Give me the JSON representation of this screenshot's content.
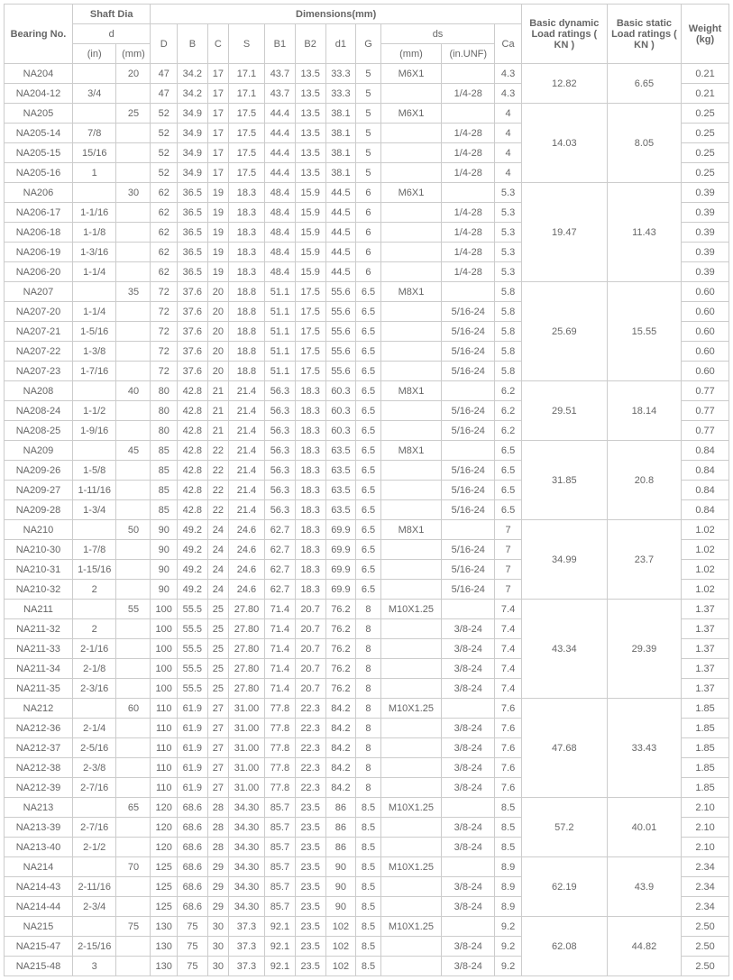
{
  "headers": {
    "bearing_no": "Bearing No.",
    "shaft_dia": "Shaft Dia",
    "dimensions": "Dimensions(mm)",
    "basic_dynamic": "Basic dynamic Load ratings ( KN )",
    "basic_static": "Basic static Load ratings ( KN )",
    "weight": "Weight (kg)",
    "d": "d",
    "in": "(in)",
    "mm": "(mm)",
    "D": "D",
    "B": "B",
    "C": "C",
    "S": "S",
    "B1": "B1",
    "B2": "B2",
    "d1": "d1",
    "G": "G",
    "ds": "ds",
    "ds_mm": "(mm)",
    "ds_unf": "(in.UNF)",
    "Ca": "Ca"
  },
  "groups": [
    {
      "dyn": "12.82",
      "stat": "6.65",
      "rows": [
        {
          "bn": "NA204",
          "in": "",
          "mm": "20",
          "D": "47",
          "B": "34.2",
          "C": "17",
          "S": "17.1",
          "B1": "43.7",
          "B2": "13.5",
          "d1": "33.3",
          "G": "5",
          "dsmm": "M6X1",
          "dsunf": "",
          "Ca": "4.3",
          "wt": "0.21"
        },
        {
          "bn": "NA204-12",
          "in": "3/4",
          "mm": "",
          "D": "47",
          "B": "34.2",
          "C": "17",
          "S": "17.1",
          "B1": "43.7",
          "B2": "13.5",
          "d1": "33.3",
          "G": "5",
          "dsmm": "",
          "dsunf": "1/4-28",
          "Ca": "4.3",
          "wt": "0.21"
        }
      ]
    },
    {
      "dyn": "14.03",
      "stat": "8.05",
      "rows": [
        {
          "bn": "NA205",
          "in": "",
          "mm": "25",
          "D": "52",
          "B": "34.9",
          "C": "17",
          "S": "17.5",
          "B1": "44.4",
          "B2": "13.5",
          "d1": "38.1",
          "G": "5",
          "dsmm": "M6X1",
          "dsunf": "",
          "Ca": "4",
          "wt": "0.25"
        },
        {
          "bn": "NA205-14",
          "in": "7/8",
          "mm": "",
          "D": "52",
          "B": "34.9",
          "C": "17",
          "S": "17.5",
          "B1": "44.4",
          "B2": "13.5",
          "d1": "38.1",
          "G": "5",
          "dsmm": "",
          "dsunf": "1/4-28",
          "Ca": "4",
          "wt": "0.25"
        },
        {
          "bn": "NA205-15",
          "in": "15/16",
          "mm": "",
          "D": "52",
          "B": "34.9",
          "C": "17",
          "S": "17.5",
          "B1": "44.4",
          "B2": "13.5",
          "d1": "38.1",
          "G": "5",
          "dsmm": "",
          "dsunf": "1/4-28",
          "Ca": "4",
          "wt": "0.25"
        },
        {
          "bn": "NA205-16",
          "in": "1",
          "mm": "",
          "D": "52",
          "B": "34.9",
          "C": "17",
          "S": "17.5",
          "B1": "44.4",
          "B2": "13.5",
          "d1": "38.1",
          "G": "5",
          "dsmm": "",
          "dsunf": "1/4-28",
          "Ca": "4",
          "wt": "0.25"
        }
      ]
    },
    {
      "dyn": "19.47",
      "stat": "11.43",
      "rows": [
        {
          "bn": "NA206",
          "in": "",
          "mm": "30",
          "D": "62",
          "B": "36.5",
          "C": "19",
          "S": "18.3",
          "B1": "48.4",
          "B2": "15.9",
          "d1": "44.5",
          "G": "6",
          "dsmm": "M6X1",
          "dsunf": "",
          "Ca": "5.3",
          "wt": "0.39"
        },
        {
          "bn": "NA206-17",
          "in": "1-1/16",
          "mm": "",
          "D": "62",
          "B": "36.5",
          "C": "19",
          "S": "18.3",
          "B1": "48.4",
          "B2": "15.9",
          "d1": "44.5",
          "G": "6",
          "dsmm": "",
          "dsunf": "1/4-28",
          "Ca": "5.3",
          "wt": "0.39"
        },
        {
          "bn": "NA206-18",
          "in": "1-1/8",
          "mm": "",
          "D": "62",
          "B": "36.5",
          "C": "19",
          "S": "18.3",
          "B1": "48.4",
          "B2": "15.9",
          "d1": "44.5",
          "G": "6",
          "dsmm": "",
          "dsunf": "1/4-28",
          "Ca": "5.3",
          "wt": "0.39"
        },
        {
          "bn": "NA206-19",
          "in": "1-3/16",
          "mm": "",
          "D": "62",
          "B": "36.5",
          "C": "19",
          "S": "18.3",
          "B1": "48.4",
          "B2": "15.9",
          "d1": "44.5",
          "G": "6",
          "dsmm": "",
          "dsunf": "1/4-28",
          "Ca": "5.3",
          "wt": "0.39"
        },
        {
          "bn": "NA206-20",
          "in": "1-1/4",
          "mm": "",
          "D": "62",
          "B": "36.5",
          "C": "19",
          "S": "18.3",
          "B1": "48.4",
          "B2": "15.9",
          "d1": "44.5",
          "G": "6",
          "dsmm": "",
          "dsunf": "1/4-28",
          "Ca": "5.3",
          "wt": "0.39"
        }
      ]
    },
    {
      "dyn": "25.69",
      "stat": "15.55",
      "rows": [
        {
          "bn": "NA207",
          "in": "",
          "mm": "35",
          "D": "72",
          "B": "37.6",
          "C": "20",
          "S": "18.8",
          "B1": "51.1",
          "B2": "17.5",
          "d1": "55.6",
          "G": "6.5",
          "dsmm": "M8X1",
          "dsunf": "",
          "Ca": "5.8",
          "wt": "0.60"
        },
        {
          "bn": "NA207-20",
          "in": "1-1/4",
          "mm": "",
          "D": "72",
          "B": "37.6",
          "C": "20",
          "S": "18.8",
          "B1": "51.1",
          "B2": "17.5",
          "d1": "55.6",
          "G": "6.5",
          "dsmm": "",
          "dsunf": "5/16-24",
          "Ca": "5.8",
          "wt": "0.60"
        },
        {
          "bn": "NA207-21",
          "in": "1-5/16",
          "mm": "",
          "D": "72",
          "B": "37.6",
          "C": "20",
          "S": "18.8",
          "B1": "51.1",
          "B2": "17.5",
          "d1": "55.6",
          "G": "6.5",
          "dsmm": "",
          "dsunf": "5/16-24",
          "Ca": "5.8",
          "wt": "0.60"
        },
        {
          "bn": "NA207-22",
          "in": "1-3/8",
          "mm": "",
          "D": "72",
          "B": "37.6",
          "C": "20",
          "S": "18.8",
          "B1": "51.1",
          "B2": "17.5",
          "d1": "55.6",
          "G": "6.5",
          "dsmm": "",
          "dsunf": "5/16-24",
          "Ca": "5.8",
          "wt": "0.60"
        },
        {
          "bn": "NA207-23",
          "in": "1-7/16",
          "mm": "",
          "D": "72",
          "B": "37.6",
          "C": "20",
          "S": "18.8",
          "B1": "51.1",
          "B2": "17.5",
          "d1": "55.6",
          "G": "6.5",
          "dsmm": "",
          "dsunf": "5/16-24",
          "Ca": "5.8",
          "wt": "0.60"
        }
      ]
    },
    {
      "dyn": "29.51",
      "stat": "18.14",
      "rows": [
        {
          "bn": "NA208",
          "in": "",
          "mm": "40",
          "D": "80",
          "B": "42.8",
          "C": "21",
          "S": "21.4",
          "B1": "56.3",
          "B2": "18.3",
          "d1": "60.3",
          "G": "6.5",
          "dsmm": "M8X1",
          "dsunf": "",
          "Ca": "6.2",
          "wt": "0.77"
        },
        {
          "bn": "NA208-24",
          "in": "1-1/2",
          "mm": "",
          "D": "80",
          "B": "42.8",
          "C": "21",
          "S": "21.4",
          "B1": "56.3",
          "B2": "18.3",
          "d1": "60.3",
          "G": "6.5",
          "dsmm": "",
          "dsunf": "5/16-24",
          "Ca": "6.2",
          "wt": "0.77"
        },
        {
          "bn": "NA208-25",
          "in": "1-9/16",
          "mm": "",
          "D": "80",
          "B": "42.8",
          "C": "21",
          "S": "21.4",
          "B1": "56.3",
          "B2": "18.3",
          "d1": "60.3",
          "G": "6.5",
          "dsmm": "",
          "dsunf": "5/16-24",
          "Ca": "6.2",
          "wt": "0.77"
        }
      ]
    },
    {
      "dyn": "31.85",
      "stat": "20.8",
      "rows": [
        {
          "bn": "NA209",
          "in": "",
          "mm": "45",
          "D": "85",
          "B": "42.8",
          "C": "22",
          "S": "21.4",
          "B1": "56.3",
          "B2": "18.3",
          "d1": "63.5",
          "G": "6.5",
          "dsmm": "M8X1",
          "dsunf": "",
          "Ca": "6.5",
          "wt": "0.84"
        },
        {
          "bn": "NA209-26",
          "in": "1-5/8",
          "mm": "",
          "D": "85",
          "B": "42.8",
          "C": "22",
          "S": "21.4",
          "B1": "56.3",
          "B2": "18.3",
          "d1": "63.5",
          "G": "6.5",
          "dsmm": "",
          "dsunf": "5/16-24",
          "Ca": "6.5",
          "wt": "0.84"
        },
        {
          "bn": "NA209-27",
          "in": "1-11/16",
          "mm": "",
          "D": "85",
          "B": "42.8",
          "C": "22",
          "S": "21.4",
          "B1": "56.3",
          "B2": "18.3",
          "d1": "63.5",
          "G": "6.5",
          "dsmm": "",
          "dsunf": "5/16-24",
          "Ca": "6.5",
          "wt": "0.84"
        },
        {
          "bn": "NA209-28",
          "in": "1-3/4",
          "mm": "",
          "D": "85",
          "B": "42.8",
          "C": "22",
          "S": "21.4",
          "B1": "56.3",
          "B2": "18.3",
          "d1": "63.5",
          "G": "6.5",
          "dsmm": "",
          "dsunf": "5/16-24",
          "Ca": "6.5",
          "wt": "0.84"
        }
      ]
    },
    {
      "dyn": "34.99",
      "stat": "23.7",
      "rows": [
        {
          "bn": "NA210",
          "in": "",
          "mm": "50",
          "D": "90",
          "B": "49.2",
          "C": "24",
          "S": "24.6",
          "B1": "62.7",
          "B2": "18.3",
          "d1": "69.9",
          "G": "6.5",
          "dsmm": "M8X1",
          "dsunf": "",
          "Ca": "7",
          "wt": "1.02"
        },
        {
          "bn": "NA210-30",
          "in": "1-7/8",
          "mm": "",
          "D": "90",
          "B": "49.2",
          "C": "24",
          "S": "24.6",
          "B1": "62.7",
          "B2": "18.3",
          "d1": "69.9",
          "G": "6.5",
          "dsmm": "",
          "dsunf": "5/16-24",
          "Ca": "7",
          "wt": "1.02"
        },
        {
          "bn": "NA210-31",
          "in": "1-15/16",
          "mm": "",
          "D": "90",
          "B": "49.2",
          "C": "24",
          "S": "24.6",
          "B1": "62.7",
          "B2": "18.3",
          "d1": "69.9",
          "G": "6.5",
          "dsmm": "",
          "dsunf": "5/16-24",
          "Ca": "7",
          "wt": "1.02"
        },
        {
          "bn": "NA210-32",
          "in": "2",
          "mm": "",
          "D": "90",
          "B": "49.2",
          "C": "24",
          "S": "24.6",
          "B1": "62.7",
          "B2": "18.3",
          "d1": "69.9",
          "G": "6.5",
          "dsmm": "",
          "dsunf": "5/16-24",
          "Ca": "7",
          "wt": "1.02"
        }
      ]
    },
    {
      "dyn": "43.34",
      "stat": "29.39",
      "rows": [
        {
          "bn": "NA211",
          "in": "",
          "mm": "55",
          "D": "100",
          "B": "55.5",
          "C": "25",
          "S": "27.80",
          "B1": "71.4",
          "B2": "20.7",
          "d1": "76.2",
          "G": "8",
          "dsmm": "M10X1.25",
          "dsunf": "",
          "Ca": "7.4",
          "wt": "1.37"
        },
        {
          "bn": "NA211-32",
          "in": "2",
          "mm": "",
          "D": "100",
          "B": "55.5",
          "C": "25",
          "S": "27.80",
          "B1": "71.4",
          "B2": "20.7",
          "d1": "76.2",
          "G": "8",
          "dsmm": "",
          "dsunf": "3/8-24",
          "Ca": "7.4",
          "wt": "1.37"
        },
        {
          "bn": "NA211-33",
          "in": "2-1/16",
          "mm": "",
          "D": "100",
          "B": "55.5",
          "C": "25",
          "S": "27.80",
          "B1": "71.4",
          "B2": "20.7",
          "d1": "76.2",
          "G": "8",
          "dsmm": "",
          "dsunf": "3/8-24",
          "Ca": "7.4",
          "wt": "1.37"
        },
        {
          "bn": "NA211-34",
          "in": "2-1/8",
          "mm": "",
          "D": "100",
          "B": "55.5",
          "C": "25",
          "S": "27.80",
          "B1": "71.4",
          "B2": "20.7",
          "d1": "76.2",
          "G": "8",
          "dsmm": "",
          "dsunf": "3/8-24",
          "Ca": "7.4",
          "wt": "1.37"
        },
        {
          "bn": "NA211-35",
          "in": "2-3/16",
          "mm": "",
          "D": "100",
          "B": "55.5",
          "C": "25",
          "S": "27.80",
          "B1": "71.4",
          "B2": "20.7",
          "d1": "76.2",
          "G": "8",
          "dsmm": "",
          "dsunf": "3/8-24",
          "Ca": "7.4",
          "wt": "1.37"
        }
      ]
    },
    {
      "dyn": "47.68",
      "stat": "33.43",
      "rows": [
        {
          "bn": "NA212",
          "in": "",
          "mm": "60",
          "D": "110",
          "B": "61.9",
          "C": "27",
          "S": "31.00",
          "B1": "77.8",
          "B2": "22.3",
          "d1": "84.2",
          "G": "8",
          "dsmm": "M10X1.25",
          "dsunf": "",
          "Ca": "7.6",
          "wt": "1.85"
        },
        {
          "bn": "NA212-36",
          "in": "2-1/4",
          "mm": "",
          "D": "110",
          "B": "61.9",
          "C": "27",
          "S": "31.00",
          "B1": "77.8",
          "B2": "22.3",
          "d1": "84.2",
          "G": "8",
          "dsmm": "",
          "dsunf": "3/8-24",
          "Ca": "7.6",
          "wt": "1.85"
        },
        {
          "bn": "NA212-37",
          "in": "2-5/16",
          "mm": "",
          "D": "110",
          "B": "61.9",
          "C": "27",
          "S": "31.00",
          "B1": "77.8",
          "B2": "22.3",
          "d1": "84.2",
          "G": "8",
          "dsmm": "",
          "dsunf": "3/8-24",
          "Ca": "7.6",
          "wt": "1.85"
        },
        {
          "bn": "NA212-38",
          "in": "2-3/8",
          "mm": "",
          "D": "110",
          "B": "61.9",
          "C": "27",
          "S": "31.00",
          "B1": "77.8",
          "B2": "22.3",
          "d1": "84.2",
          "G": "8",
          "dsmm": "",
          "dsunf": "3/8-24",
          "Ca": "7.6",
          "wt": "1.85"
        },
        {
          "bn": "NA212-39",
          "in": "2-7/16",
          "mm": "",
          "D": "110",
          "B": "61.9",
          "C": "27",
          "S": "31.00",
          "B1": "77.8",
          "B2": "22.3",
          "d1": "84.2",
          "G": "8",
          "dsmm": "",
          "dsunf": "3/8-24",
          "Ca": "7.6",
          "wt": "1.85"
        }
      ]
    },
    {
      "dyn": "57.2",
      "stat": "40.01",
      "rows": [
        {
          "bn": "NA213",
          "in": "",
          "mm": "65",
          "D": "120",
          "B": "68.6",
          "C": "28",
          "S": "34.30",
          "B1": "85.7",
          "B2": "23.5",
          "d1": "86",
          "G": "8.5",
          "dsmm": "M10X1.25",
          "dsunf": "",
          "Ca": "8.5",
          "wt": "2.10"
        },
        {
          "bn": "NA213-39",
          "in": "2-7/16",
          "mm": "",
          "D": "120",
          "B": "68.6",
          "C": "28",
          "S": "34.30",
          "B1": "85.7",
          "B2": "23.5",
          "d1": "86",
          "G": "8.5",
          "dsmm": "",
          "dsunf": "3/8-24",
          "Ca": "8.5",
          "wt": "2.10"
        },
        {
          "bn": "NA213-40",
          "in": "2-1/2",
          "mm": "",
          "D": "120",
          "B": "68.6",
          "C": "28",
          "S": "34.30",
          "B1": "85.7",
          "B2": "23.5",
          "d1": "86",
          "G": "8.5",
          "dsmm": "",
          "dsunf": "3/8-24",
          "Ca": "8.5",
          "wt": "2.10"
        }
      ]
    },
    {
      "dyn": "62.19",
      "stat": "43.9",
      "rows": [
        {
          "bn": "NA214",
          "in": "",
          "mm": "70",
          "D": "125",
          "B": "68.6",
          "C": "29",
          "S": "34.30",
          "B1": "85.7",
          "B2": "23.5",
          "d1": "90",
          "G": "8.5",
          "dsmm": "M10X1.25",
          "dsunf": "",
          "Ca": "8.9",
          "wt": "2.34"
        },
        {
          "bn": "NA214-43",
          "in": "2-11/16",
          "mm": "",
          "D": "125",
          "B": "68.6",
          "C": "29",
          "S": "34.30",
          "B1": "85.7",
          "B2": "23.5",
          "d1": "90",
          "G": "8.5",
          "dsmm": "",
          "dsunf": "3/8-24",
          "Ca": "8.9",
          "wt": "2.34"
        },
        {
          "bn": "NA214-44",
          "in": "2-3/4",
          "mm": "",
          "D": "125",
          "B": "68.6",
          "C": "29",
          "S": "34.30",
          "B1": "85.7",
          "B2": "23.5",
          "d1": "90",
          "G": "8.5",
          "dsmm": "",
          "dsunf": "3/8-24",
          "Ca": "8.9",
          "wt": "2.34"
        }
      ]
    },
    {
      "dyn": "62.08",
      "stat": "44.82",
      "rows": [
        {
          "bn": "NA215",
          "in": "",
          "mm": "75",
          "D": "130",
          "B": "75",
          "C": "30",
          "S": "37.3",
          "B1": "92.1",
          "B2": "23.5",
          "d1": "102",
          "G": "8.5",
          "dsmm": "M10X1.25",
          "dsunf": "",
          "Ca": "9.2",
          "wt": "2.50"
        },
        {
          "bn": "NA215-47",
          "in": "2-15/16",
          "mm": "",
          "D": "130",
          "B": "75",
          "C": "30",
          "S": "37.3",
          "B1": "92.1",
          "B2": "23.5",
          "d1": "102",
          "G": "8.5",
          "dsmm": "",
          "dsunf": "3/8-24",
          "Ca": "9.2",
          "wt": "2.50"
        },
        {
          "bn": "NA215-48",
          "in": "3",
          "mm": "",
          "D": "130",
          "B": "75",
          "C": "30",
          "S": "37.3",
          "B1": "92.1",
          "B2": "23.5",
          "d1": "102",
          "G": "8.5",
          "dsmm": "",
          "dsunf": "3/8-24",
          "Ca": "9.2",
          "wt": "2.50"
        }
      ]
    }
  ],
  "col_widths": {
    "bn": 72,
    "in": 46,
    "mm": 36,
    "D": 28,
    "B": 32,
    "C": 22,
    "S": 38,
    "B1": 32,
    "B2": 32,
    "d1": 32,
    "G": 26,
    "dsmm": 64,
    "dsunf": 56,
    "Ca": 28,
    "dyn": 90,
    "stat": 78,
    "wt": 50
  }
}
